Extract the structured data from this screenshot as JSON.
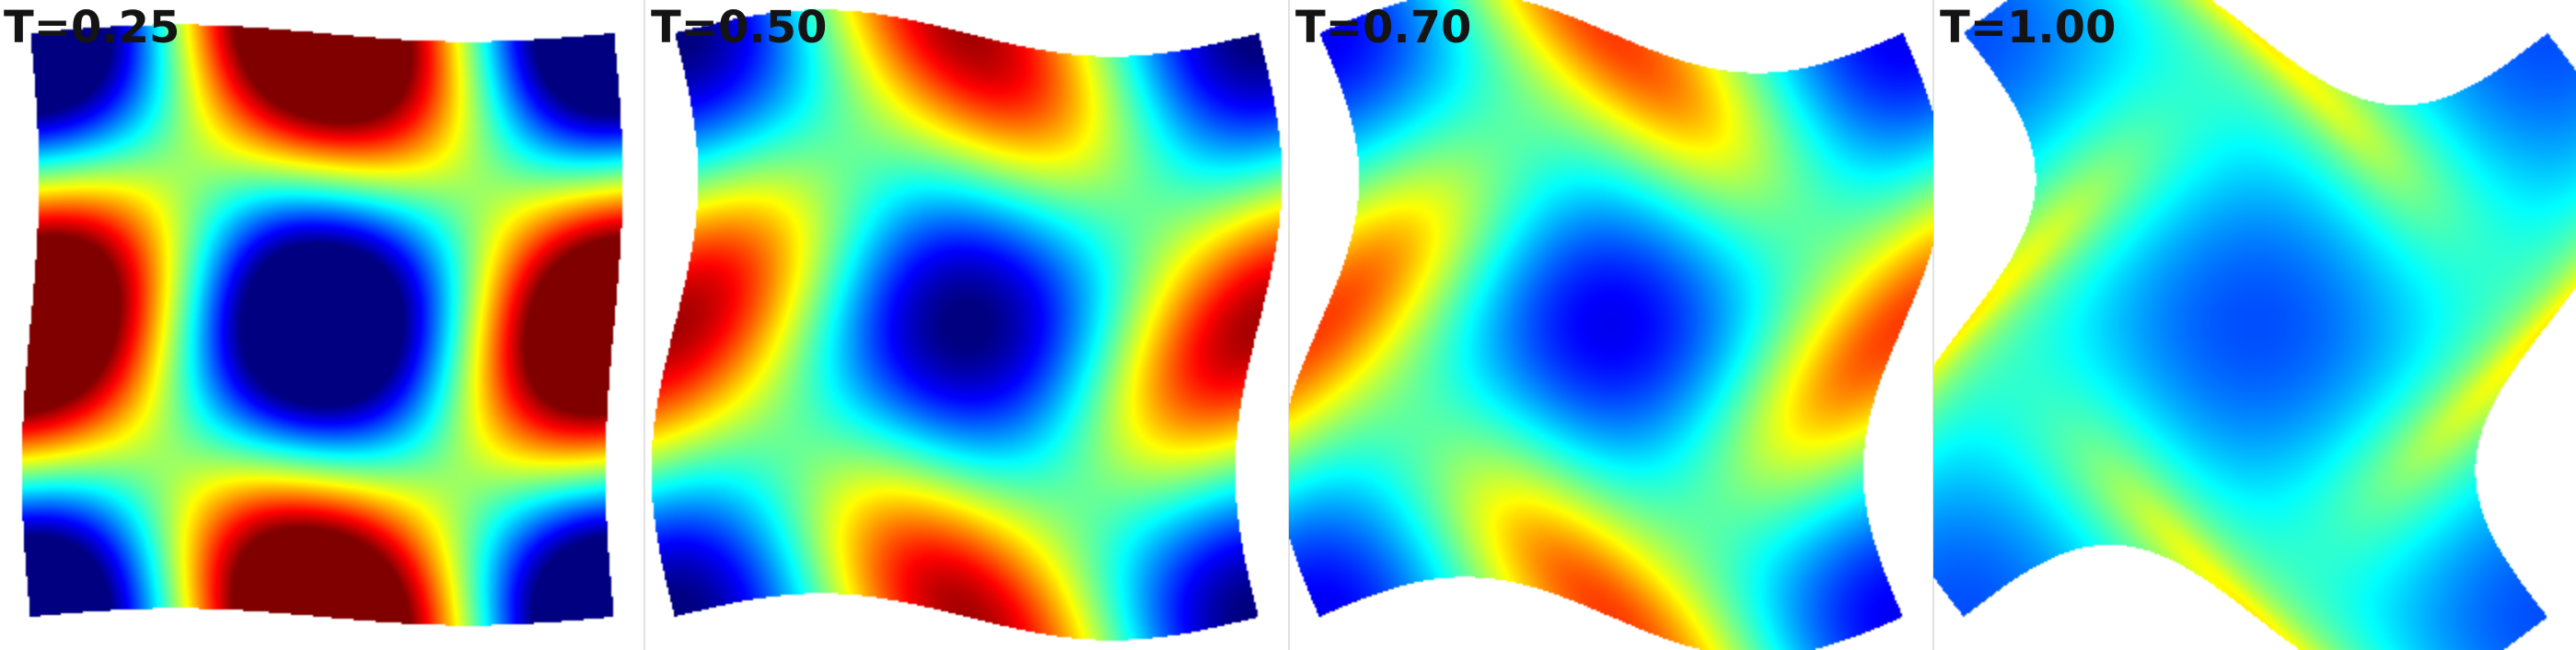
{
  "figure": {
    "panels": [
      {
        "title": "T=0.25",
        "time": 0.25
      },
      {
        "title": "T=0.50",
        "time": 0.5
      },
      {
        "title": "T=0.70",
        "time": 0.7
      },
      {
        "title": "T=1.00",
        "time": 1.0
      }
    ],
    "colormap": "jet",
    "background_color": "#ffffff"
  }
}
